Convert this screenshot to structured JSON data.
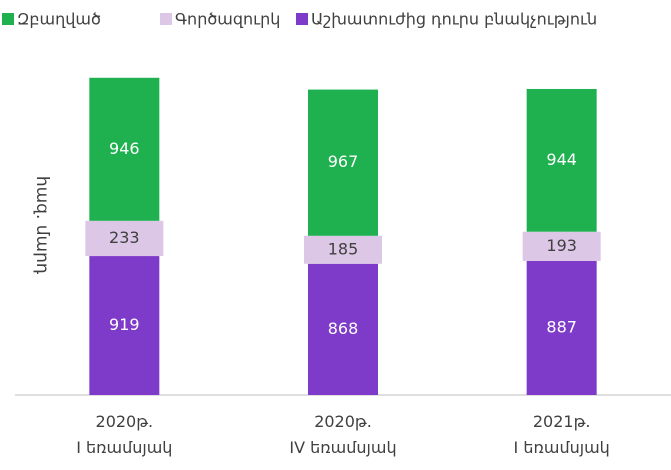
{
  "chart_data": {
    "type": "stacked_bar",
    "ylabel": "հազ. մարդ",
    "categories": [
      [
        "2020թ.",
        "I եռամսյակ"
      ],
      [
        "2020թ.",
        "IV եռամսյակ"
      ],
      [
        "2021թ.",
        "I եռամսյակ"
      ]
    ],
    "series": [
      {
        "name": "Աշխատուժից դուրս բնակչություն",
        "color": "#7e3bc9",
        "values": [
          919,
          868,
          887
        ]
      },
      {
        "name": "Գործազուրկ",
        "color": "#dcc8e6",
        "values": [
          233,
          185,
          193
        ]
      },
      {
        "name": "Զբաղված",
        "color": "#1fb14f",
        "values": [
          946,
          967,
          944
        ]
      }
    ],
    "ylim": [
      0,
      2500
    ],
    "legend": "top"
  }
}
